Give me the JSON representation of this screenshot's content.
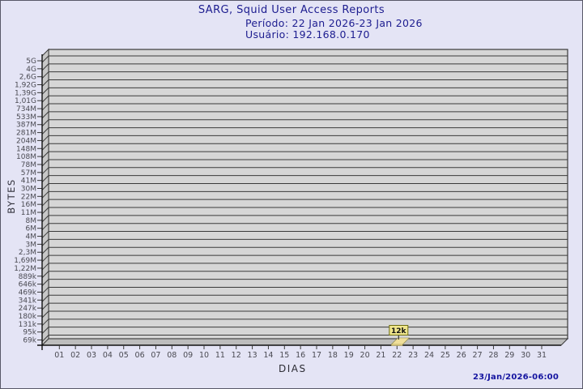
{
  "header": {
    "title": "SARG, Squid User Access Reports",
    "period": "Período: 22 Jan 2026-23 Jan 2026",
    "user": "Usuário: 192.168.0.170"
  },
  "footer": {
    "generated": "23/Jan/2026-06:00"
  },
  "chart_data": {
    "type": "bar",
    "projection": "3d",
    "title": "SARG, Squid User Access Reports",
    "subtitle_period": "Período: 22 Jan 2026-23 Jan 2026",
    "subtitle_user": "Usuário: 192.168.0.170",
    "xlabel": "DIAS",
    "ylabel": "BYTES",
    "categories": [
      "01",
      "02",
      "03",
      "04",
      "05",
      "06",
      "07",
      "08",
      "09",
      "10",
      "11",
      "12",
      "13",
      "14",
      "15",
      "16",
      "17",
      "18",
      "19",
      "20",
      "21",
      "22",
      "23",
      "24",
      "25",
      "26",
      "27",
      "28",
      "29",
      "30",
      "31"
    ],
    "values": [
      0,
      0,
      0,
      0,
      0,
      0,
      0,
      0,
      0,
      0,
      0,
      0,
      0,
      0,
      0,
      0,
      0,
      0,
      0,
      0,
      0,
      12000,
      0,
      0,
      0,
      0,
      0,
      0,
      0,
      0,
      0
    ],
    "point_labels": [
      null,
      null,
      null,
      null,
      null,
      null,
      null,
      null,
      null,
      null,
      null,
      null,
      null,
      null,
      null,
      null,
      null,
      null,
      null,
      null,
      null,
      "12k",
      null,
      null,
      null,
      null,
      null,
      null,
      null,
      null,
      null
    ],
    "y_tick_labels": [
      "5G",
      "4G",
      "2,6G",
      "1,92G",
      "1,39G",
      "1,01G",
      "734M",
      "533M",
      "387M",
      "281M",
      "204M",
      "148M",
      "108M",
      "78M",
      "57M",
      "41M",
      "30M",
      "22M",
      "16M",
      "11M",
      "8M",
      "6M",
      "4M",
      "3M",
      "2,3M",
      "1,69M",
      "1,22M",
      "889k",
      "646k",
      "469k",
      "341k",
      "247k",
      "180k",
      "131k",
      "95k",
      "69k"
    ],
    "y_scale": "log",
    "ylim_labels": [
      "69k",
      "5G"
    ],
    "grid": true,
    "legend": "none",
    "colors": {
      "background": "#e4e4f5",
      "plot_fill": "#d6d6d6",
      "wall_fill": "#c7c7c7",
      "floor_fill": "#bdbdbd",
      "grid_line": "#3a3a3a",
      "axis_line": "#111111",
      "tick_text": "#4a4a52",
      "bar_fill": "#f0df9b",
      "bar_front": "#d9c878",
      "label_box_fill": "#f0e68c",
      "label_box_border": "#6e6e14",
      "title_text": "#1c1c8f",
      "footer_text": "#1414a0"
    }
  }
}
